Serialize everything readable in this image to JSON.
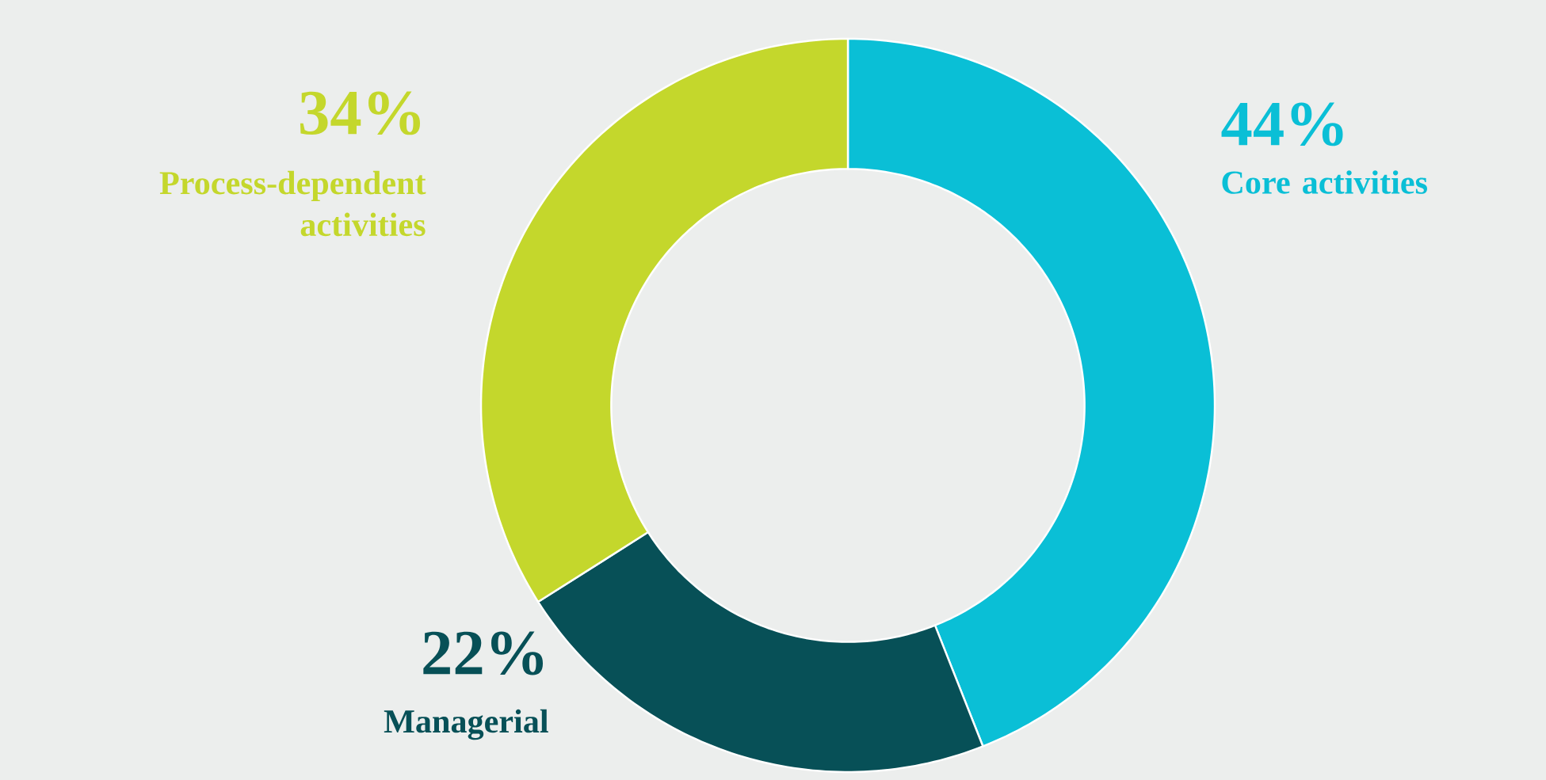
{
  "chart_data": {
    "type": "donut",
    "categories": [
      "Core activities",
      "Managerial",
      "Process-dependent activities"
    ],
    "values": [
      44,
      22,
      34
    ],
    "colors": [
      "#0abfd6",
      "#075057",
      "#c4d72c"
    ],
    "value_labels": [
      "44%",
      "22%",
      "34%"
    ]
  }
}
